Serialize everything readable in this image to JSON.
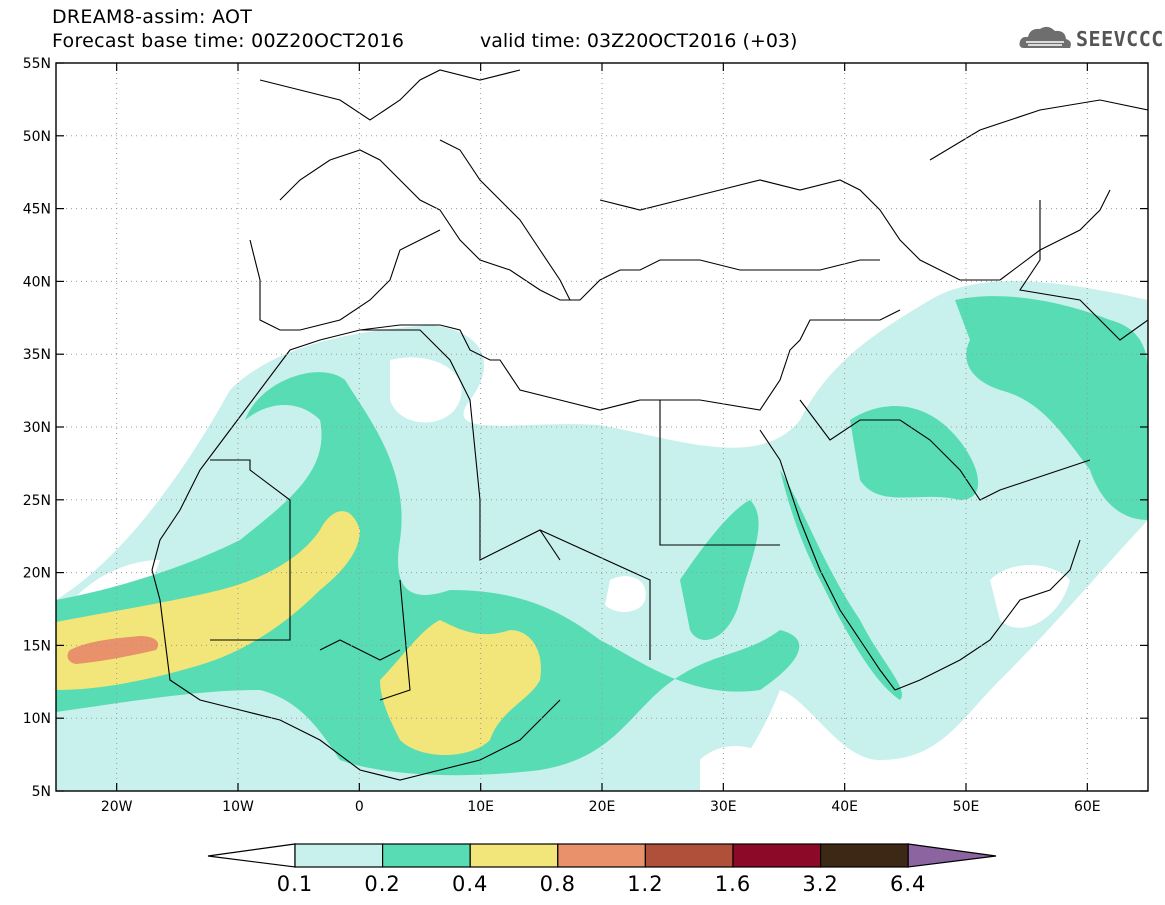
{
  "header": {
    "model_title": "DREAM8-assim: AOT",
    "base_time_line": "Forecast base time: 00Z20OCT2016",
    "valid_time_line": "valid time: 03Z20OCT2016 (+03)",
    "logo_text": "SEEVCCC"
  },
  "map": {
    "lon_range": [
      -25,
      65
    ],
    "lat_range": [
      5,
      55
    ],
    "lat_labels": [
      "55N",
      "50N",
      "45N",
      "40N",
      "35N",
      "30N",
      "25N",
      "20N",
      "15N",
      "10N",
      "5N"
    ],
    "lat_values": [
      55,
      50,
      45,
      40,
      35,
      30,
      25,
      20,
      15,
      10,
      5
    ],
    "lon_labels": [
      "20W",
      "10W",
      "0",
      "10E",
      "20E",
      "30E",
      "40E",
      "50E",
      "60E"
    ],
    "lon_values": [
      -20,
      -10,
      0,
      10,
      20,
      30,
      40,
      50,
      60
    ],
    "gridlines": "dotted"
  },
  "colors": {
    "c_0_1": "#c8f0ec",
    "c_0_2": "#58dcb4",
    "c_0_4": "#f2e67a",
    "c_0_8": "#e8916a",
    "c_1_2": "#b0503a",
    "c_1_6": "#8c0a28",
    "c_3_2": "#3c2814",
    "c_6_4": "#8c64a0",
    "coast": "#000000"
  },
  "legend": {
    "labels": [
      "0.1",
      "0.2",
      "0.4",
      "0.8",
      "1.2",
      "1.6",
      "3.2",
      "6.4"
    ]
  }
}
